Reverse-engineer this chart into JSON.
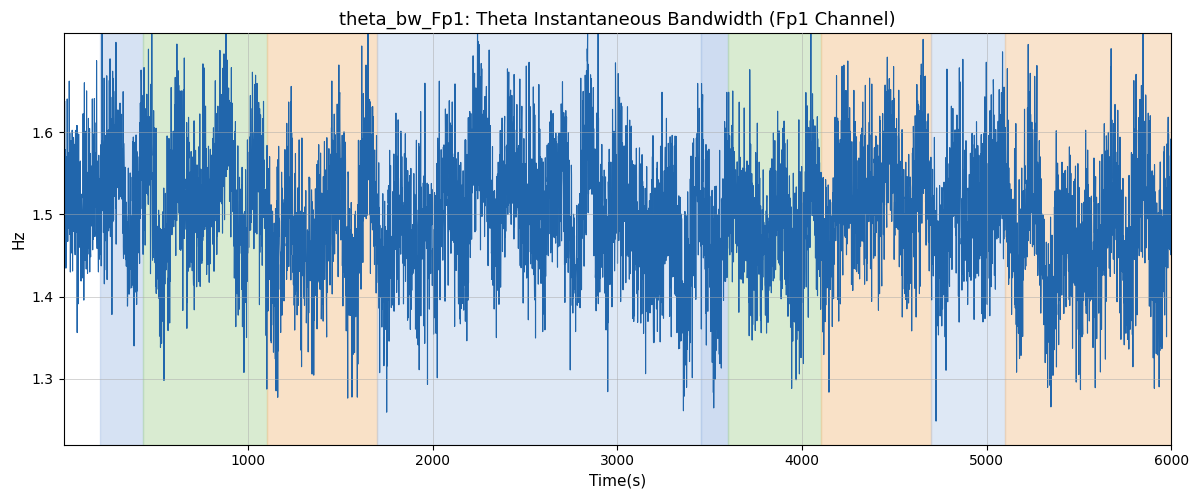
{
  "title": "theta_bw_Fp1: Theta Instantaneous Bandwidth (Fp1 Channel)",
  "xlabel": "Time(s)",
  "ylabel": "Hz",
  "xlim": [
    0,
    6000
  ],
  "ylim": [
    1.22,
    1.72
  ],
  "yticks": [
    1.3,
    1.4,
    1.5,
    1.6
  ],
  "xticks": [
    1000,
    2000,
    3000,
    4000,
    5000,
    6000
  ],
  "line_color": "#2166ac",
  "line_width": 0.8,
  "mean_value": 1.5,
  "seed": 42,
  "n_points": 6000,
  "background_bands": [
    {
      "xmin": 200,
      "xmax": 430,
      "color": "#aec6e8",
      "alpha": 0.5
    },
    {
      "xmin": 430,
      "xmax": 1100,
      "color": "#b5d9a5",
      "alpha": 0.5
    },
    {
      "xmin": 1100,
      "xmax": 1700,
      "color": "#f5c99a",
      "alpha": 0.55
    },
    {
      "xmin": 1700,
      "xmax": 3450,
      "color": "#aec6e8",
      "alpha": 0.4
    },
    {
      "xmin": 3450,
      "xmax": 3600,
      "color": "#aec6e8",
      "alpha": 0.6
    },
    {
      "xmin": 3600,
      "xmax": 4100,
      "color": "#b5d9a5",
      "alpha": 0.5
    },
    {
      "xmin": 4100,
      "xmax": 4700,
      "color": "#f5c99a",
      "alpha": 0.55
    },
    {
      "xmin": 4700,
      "xmax": 5100,
      "color": "#aec6e8",
      "alpha": 0.4
    },
    {
      "xmin": 5100,
      "xmax": 6000,
      "color": "#f5c99a",
      "alpha": 0.5
    }
  ],
  "grid_color": "#aaaaaa",
  "grid_alpha": 0.5,
  "title_fontsize": 13,
  "label_fontsize": 11,
  "figsize": [
    12,
    5
  ],
  "dpi": 100
}
